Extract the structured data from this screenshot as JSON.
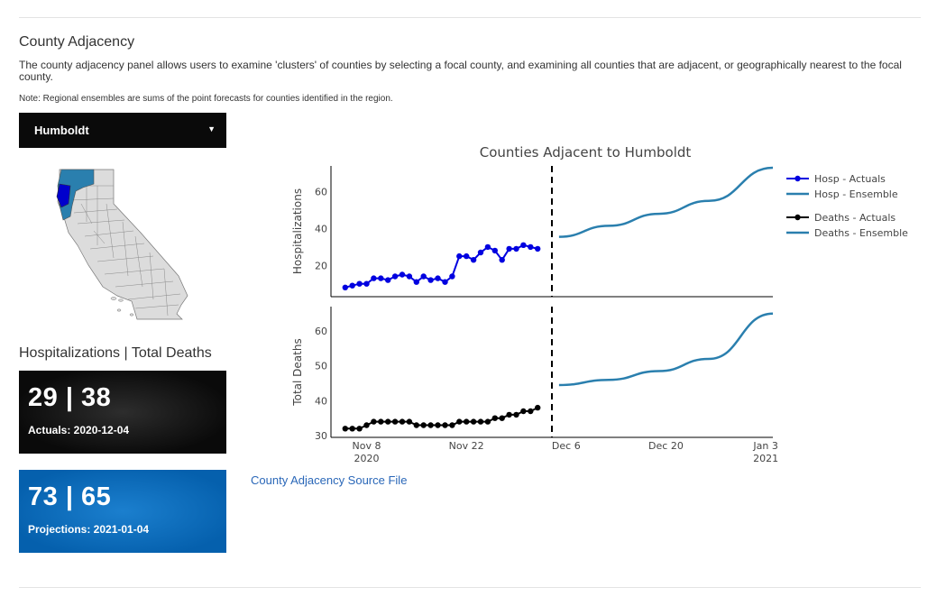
{
  "section": {
    "title": "County Adjacency",
    "description": "The county adjacency panel allows users to examine 'clusters' of counties by selecting a focal county, and examining all counties that are adjacent, or geographically nearest to the focal county.",
    "note": "Note: Regional ensembles are sums of the point forecasts for counties identified in the region."
  },
  "county_select": {
    "value": "Humboldt"
  },
  "stats": {
    "title": "Hospitalizations | Total Deaths",
    "actual": {
      "value": "29 | 38",
      "label": "Actuals: 2020-12-04"
    },
    "projection": {
      "value": "73 | 65",
      "label": "Projections: 2021-01-04"
    }
  },
  "source_link": "County Adjacency Source File",
  "colors": {
    "actuals_hosp": "#0000e0",
    "actuals_deaths": "#000000",
    "ensemble": "#2a7fae",
    "projection_card": "#0560ad",
    "link": "#2a67b8",
    "map_selected": "#0000cc",
    "map_adjacent": "#2a7fae"
  },
  "chart_data": {
    "type": "line",
    "title": "Counties Adjacent to Humboldt",
    "x_ticks": [
      {
        "date": "2020-11-08",
        "label": "Nov 8",
        "sub": "2020"
      },
      {
        "date": "2020-11-22",
        "label": "Nov 22",
        "sub": ""
      },
      {
        "date": "2020-12-06",
        "label": "Dec 6",
        "sub": ""
      },
      {
        "date": "2020-12-20",
        "label": "Dec 20",
        "sub": ""
      },
      {
        "date": "2021-01-03",
        "label": "Jan 3",
        "sub": "2021"
      }
    ],
    "xlim": [
      "2020-11-03",
      "2021-01-04"
    ],
    "vline_date": "2020-12-04",
    "legend": {
      "hosp_actuals": "Hosp - Actuals",
      "hosp_ensemble": "Hosp - Ensemble",
      "deaths_actuals": "Deaths - Actuals",
      "deaths_ensemble": "Deaths - Ensemble"
    },
    "panels": [
      {
        "ylabel": "Hospitalizations",
        "ylim": [
          3,
          74
        ],
        "yticks": [
          20,
          40,
          60
        ],
        "actuals": {
          "name": "Hosp - Actuals",
          "start_date": "2020-11-05",
          "values": [
            8,
            9,
            10,
            10,
            13,
            13,
            12,
            14,
            15,
            14,
            11,
            14,
            12,
            13,
            11,
            14,
            25,
            25,
            23,
            27,
            30,
            28,
            23,
            29,
            29,
            31,
            30,
            29
          ]
        },
        "ensemble": {
          "name": "Hosp - Ensemble",
          "points": [
            [
              "2020-12-05",
              35.5
            ],
            [
              "2020-12-12",
              41.5
            ],
            [
              "2020-12-19",
              48
            ],
            [
              "2020-12-26",
              55
            ],
            [
              "2021-01-04",
              73
            ]
          ]
        }
      },
      {
        "ylabel": "Total Deaths",
        "ylim": [
          29.5,
          67
        ],
        "yticks": [
          30,
          40,
          50,
          60
        ],
        "actuals": {
          "name": "Deaths - Actuals",
          "start_date": "2020-11-05",
          "values": [
            32,
            32,
            32,
            33,
            34,
            34,
            34,
            34,
            34,
            34,
            33,
            33,
            33,
            33,
            33,
            33,
            34,
            34,
            34,
            34,
            34,
            35,
            35,
            36,
            36,
            37,
            37,
            38
          ]
        },
        "ensemble": {
          "name": "Deaths - Ensemble",
          "points": [
            [
              "2020-12-05",
              44.5
            ],
            [
              "2020-12-12",
              46
            ],
            [
              "2020-12-19",
              48.5
            ],
            [
              "2020-12-26",
              52
            ],
            [
              "2021-01-04",
              65
            ]
          ]
        }
      }
    ]
  }
}
